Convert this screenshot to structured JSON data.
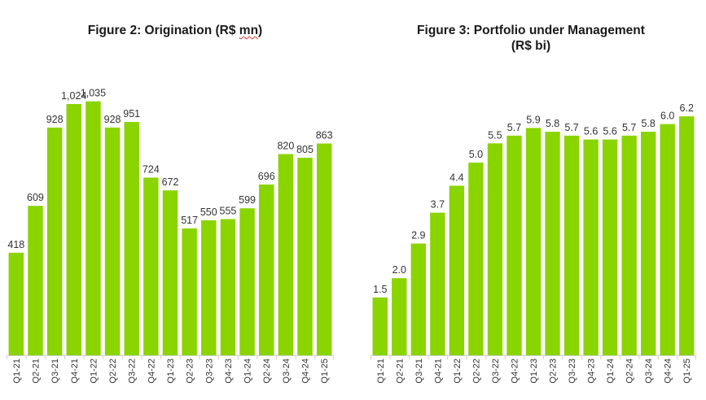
{
  "chart_data": [
    {
      "type": "bar",
      "title": "Figure 2: Origination (R$ mn)",
      "title_plain": "Figure 2: Origination (R$ ",
      "title_squiggle": "mn",
      "title_end": ")",
      "categories": [
        "Q1-21",
        "Q2-21",
        "Q3-21",
        "Q4-21",
        "Q1-22",
        "Q2-22",
        "Q3-22",
        "Q4-22",
        "Q1-23",
        "Q2-23",
        "Q3-23",
        "Q4-23",
        "Q1-24",
        "Q2-24",
        "Q3-24",
        "Q4-24",
        "Q1-25"
      ],
      "values": [
        418,
        609,
        928,
        1024,
        1035,
        928,
        951,
        724,
        672,
        517,
        550,
        555,
        599,
        696,
        820,
        805,
        863
      ],
      "value_labels": [
        "418",
        "609",
        "928",
        "1,024",
        "1,035",
        "928",
        "951",
        "724",
        "672",
        "517",
        "550",
        "555",
        "599",
        "696",
        "820",
        "805",
        "863"
      ],
      "xlabel": "",
      "ylabel": "",
      "ylim": [
        0,
        1100
      ]
    },
    {
      "type": "bar",
      "title": "Figure 3: Portfolio under Management (R$ bi)",
      "title_line1": "Figure 3: Portfolio under Management",
      "title_line2": "(R$ bi)",
      "categories": [
        "Q1-21",
        "Q2-21",
        "Q3-21",
        "Q4-21",
        "Q1-22",
        "Q2-22",
        "Q3-22",
        "Q4-22",
        "Q1-23",
        "Q2-23",
        "Q3-23",
        "Q4-23",
        "Q1-24",
        "Q2-24",
        "Q3-24",
        "Q4-24",
        "Q1-25"
      ],
      "values": [
        1.5,
        2.0,
        2.9,
        3.7,
        4.4,
        5.0,
        5.5,
        5.7,
        5.9,
        5.8,
        5.7,
        5.6,
        5.6,
        5.7,
        5.8,
        6.0,
        6.2
      ],
      "value_labels": [
        "1.5",
        "2.0",
        "2.9",
        "3.7",
        "4.4",
        "5.0",
        "5.5",
        "5.7",
        "5.9",
        "5.8",
        "5.7",
        "5.6",
        "5.6",
        "5.7",
        "5.8",
        "6.0",
        "6.2"
      ],
      "xlabel": "",
      "ylabel": "",
      "ylim": [
        0,
        7.3
      ]
    }
  ],
  "colors": {
    "bar": "#8ad400",
    "text": "#333333"
  }
}
